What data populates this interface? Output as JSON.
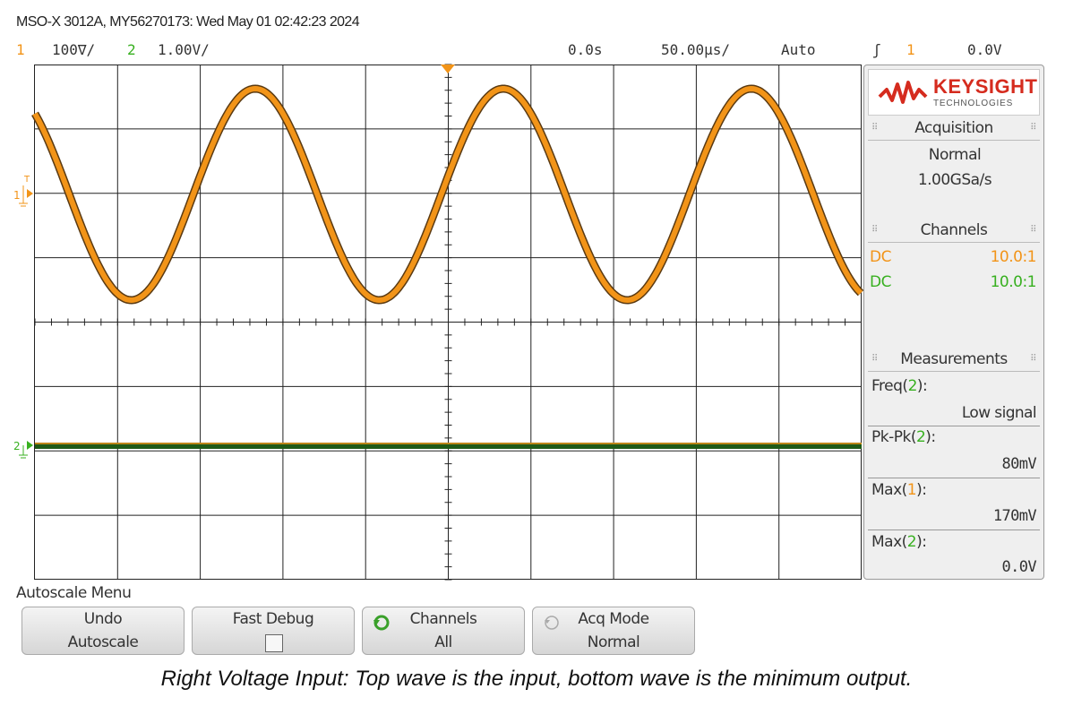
{
  "header": {
    "title": "MSO-X 3012A, MY56270173: Wed May 01 02:42:23 2024"
  },
  "status": {
    "ch1_num": "1",
    "ch1_scale": "100∇/",
    "ch2_num": "2",
    "ch2_scale": "1.00V/",
    "time_delay": "0.0s",
    "time_scale": "50.00µs/",
    "trigger_mode": "Auto",
    "trigger_slope": "ʃ",
    "trigger_source": "1",
    "trigger_level": "0.0V"
  },
  "markers": {
    "ch1": "1",
    "ch2": "2",
    "trigger_level": "T"
  },
  "brand": {
    "name": "KEYSIGHT",
    "sub": "TECHNOLOGIES"
  },
  "acquisition": {
    "heading": "Acquisition",
    "mode": "Normal",
    "rate": "1.00GSa/s"
  },
  "channels": {
    "heading": "Channels",
    "rows": [
      {
        "coupling": "DC",
        "probe": "10.0:1",
        "color": "#f29418"
      },
      {
        "coupling": "DC",
        "probe": "10.0:1",
        "color": "#38b020"
      }
    ]
  },
  "measurements": {
    "heading": "Measurements",
    "items": [
      {
        "name": "Freq",
        "ch": "2",
        "suffix": "):",
        "value": "Low signal"
      },
      {
        "name": "Pk-Pk",
        "ch": "2",
        "suffix": "):",
        "value": "80mV"
      },
      {
        "name": "Max",
        "ch": "1",
        "suffix": "):",
        "value": "170mV"
      },
      {
        "name": "Max",
        "ch": "2",
        "suffix": "):",
        "value": "0.0V"
      }
    ]
  },
  "softkeys": {
    "menu_title": "Autoscale Menu",
    "undo_l1": "Undo",
    "undo_l2": "Autoscale",
    "fastdebug_l1": "Fast Debug",
    "channels_l1": "Channels",
    "channels_l2": "All",
    "acqmode_l1": "Acq Mode",
    "acqmode_l2": "Normal"
  },
  "caption": "Right Voltage Input: Top wave is the input, bottom wave is the minimum output.",
  "waveforms": {
    "ch1": {
      "shape": "sine",
      "color": "#f29418",
      "period_divisions": 3.0
    },
    "ch2": {
      "shape": "flat",
      "color": "#38b020"
    }
  },
  "colors": {
    "ch1": "#f29418",
    "ch2": "#38b020",
    "grid": "#222222",
    "brand": "#d52b1e"
  }
}
